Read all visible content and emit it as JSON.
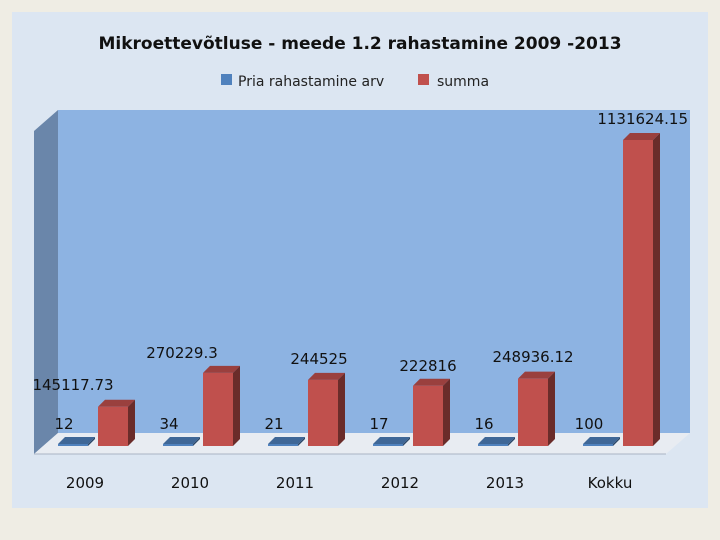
{
  "chart_data": {
    "type": "bar",
    "title": "Mikroettevõtluse - meede 1.2  rahastamine 2009 -2013",
    "categories": [
      "2009",
      "2010",
      "2011",
      "2012",
      "2013",
      "Kokku"
    ],
    "series": [
      {
        "name": "Pria rahastamine arv",
        "values": [
          12,
          34,
          21,
          17,
          16,
          100
        ],
        "color": "#4f81bd"
      },
      {
        "name": "summa",
        "values": [
          145117.73,
          270229.3,
          244525,
          222816,
          248936.12,
          1131624.15
        ],
        "color": "#c0504d"
      }
    ],
    "value_labels": {
      "count": [
        "12",
        "34",
        "21",
        "17",
        "16",
        "100"
      ],
      "sum": [
        "145117.73",
        "270229.3",
        "244525",
        "222816",
        "248936.12",
        "1131624.15"
      ]
    },
    "xlabel": "",
    "ylabel": "",
    "ylim": [
      0,
      1131624.15
    ],
    "legend": "top-center",
    "grid": false,
    "style_3d": true,
    "colors": {
      "background": "#dce6f2",
      "plot_back": "#8db3e2",
      "plot_side": "#6a86aa",
      "floor": "#e8ecf2"
    }
  }
}
